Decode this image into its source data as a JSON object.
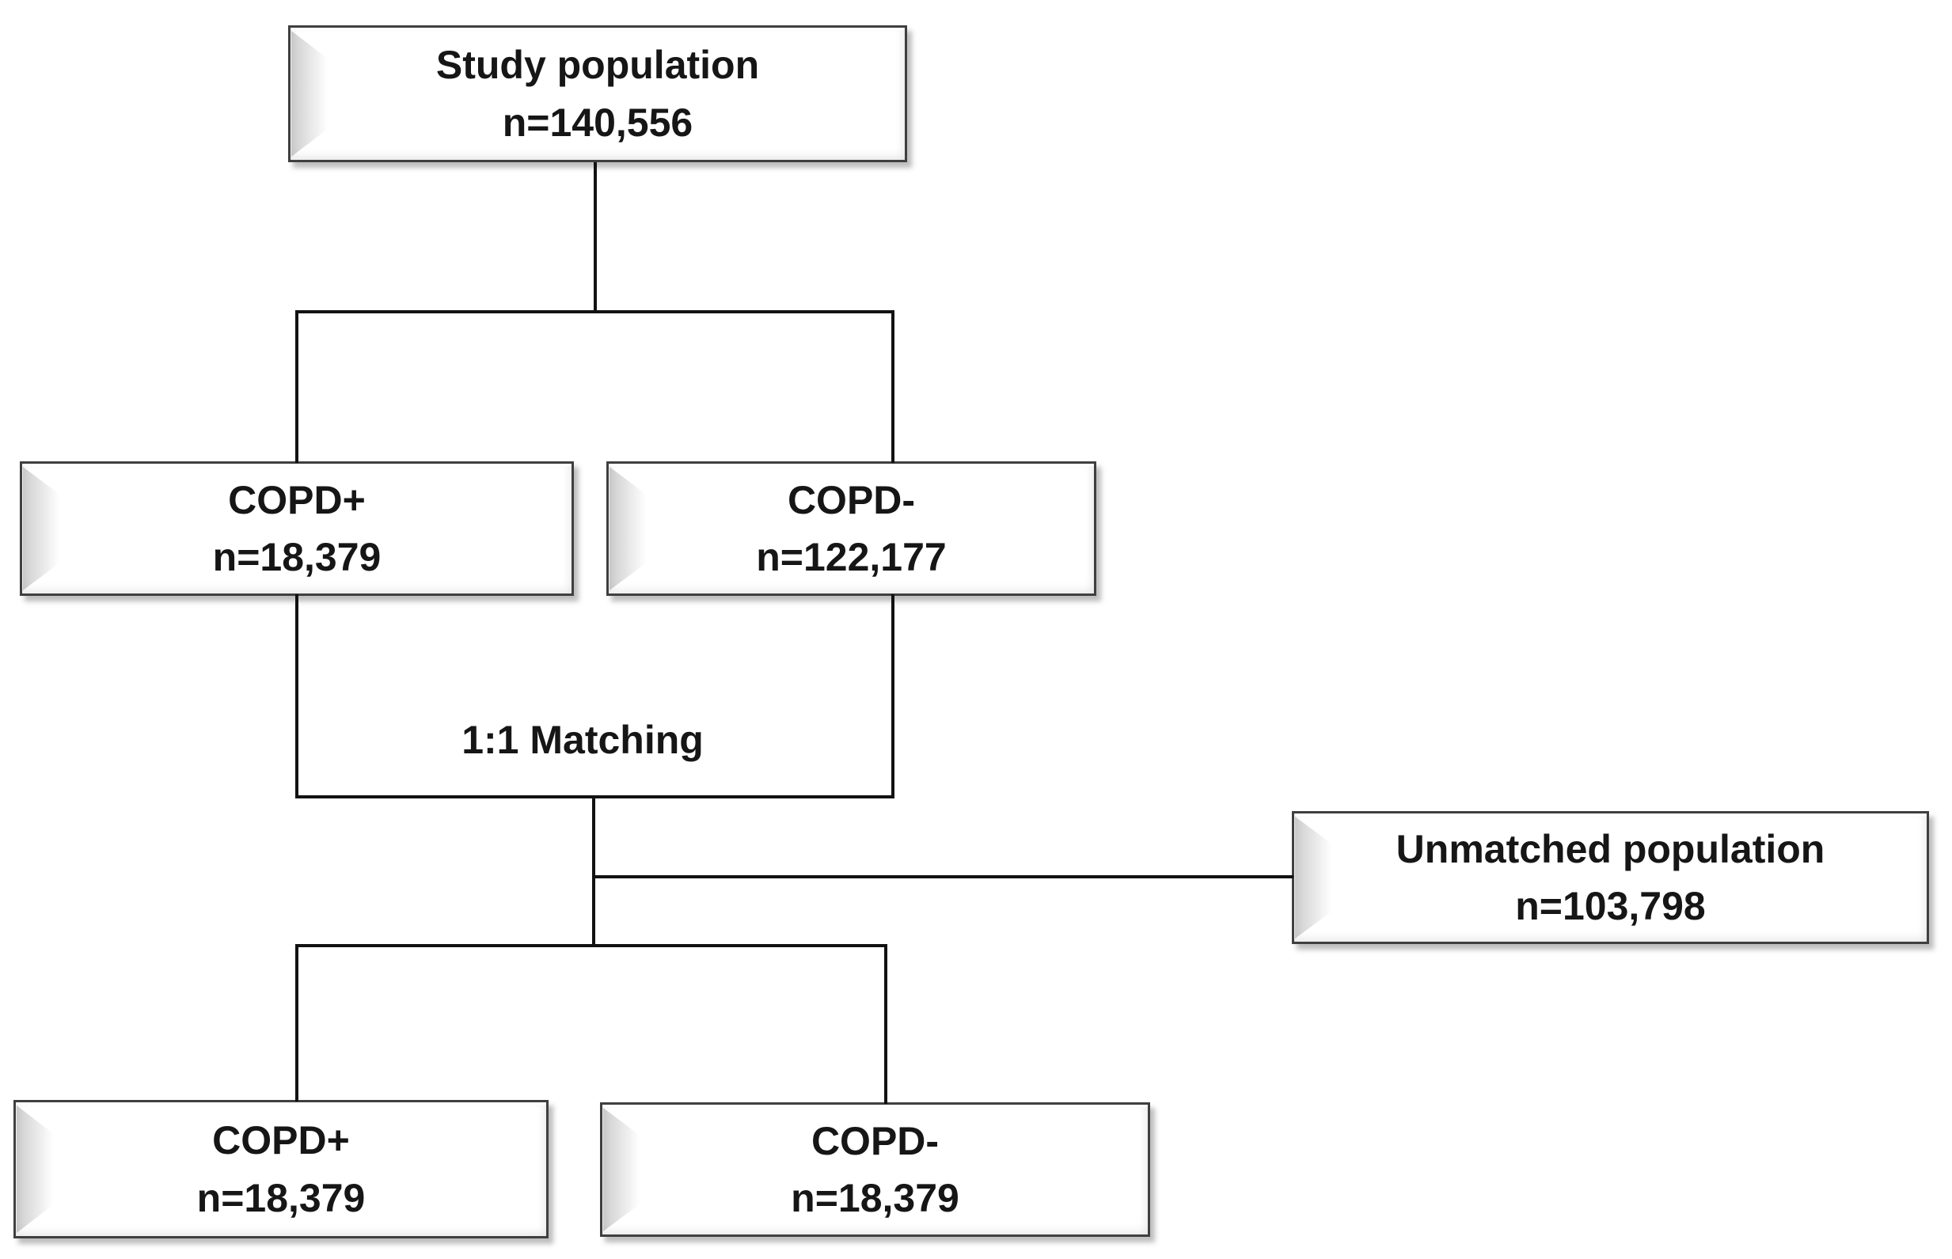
{
  "flowchart": {
    "nodes": {
      "study": {
        "label": "Study population",
        "count": "n=140,556"
      },
      "copd_positive": {
        "label": "COPD+",
        "count": "n=18,379"
      },
      "copd_negative": {
        "label": "COPD-",
        "count": "n=122,177"
      },
      "unmatched": {
        "label": "Unmatched population",
        "count": "n=103,798"
      },
      "matched_copd_positive": {
        "label": "COPD+",
        "count": "n=18,379"
      },
      "matched_copd_negative": {
        "label": "COPD-",
        "count": "n=18,379"
      }
    },
    "annotations": {
      "matching_label": "1:1 Matching"
    },
    "colors": {
      "line": "#121212",
      "box_border": "#3f3f3f",
      "box_fill": "#ffffff",
      "text": "#161616"
    }
  }
}
